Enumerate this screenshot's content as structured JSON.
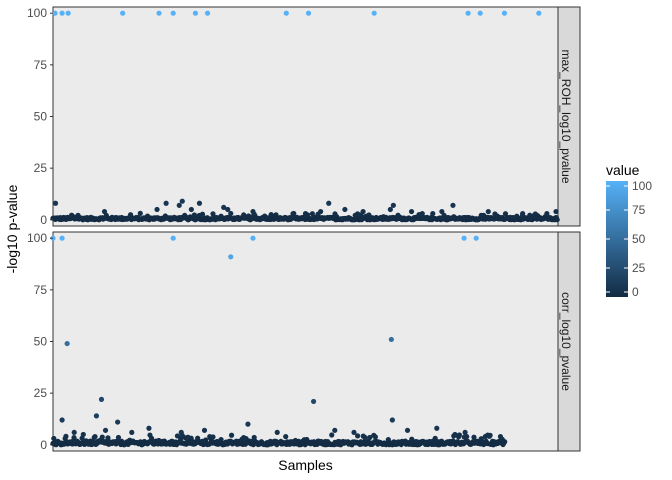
{
  "chart_data": {
    "type": "scatter",
    "xlabel": "Samples",
    "ylabel": "-log10 p-value",
    "ylim": [
      -3,
      103
    ],
    "y_ticks": [
      0,
      25,
      50,
      75,
      100
    ],
    "x_range": [
      0,
      1000
    ],
    "legend": {
      "title": "value",
      "type": "colorbar",
      "position": "right",
      "ticks": [
        0,
        25,
        50,
        75,
        100
      ],
      "low_color": "#132b43",
      "high_color": "#56b1f7"
    },
    "panels": [
      {
        "strip": "max_ROH_log10_pvalue",
        "high_points": [
          {
            "x": 4,
            "y": 100
          },
          {
            "x": 18,
            "y": 100
          },
          {
            "x": 30,
            "y": 100
          },
          {
            "x": 138,
            "y": 100
          },
          {
            "x": 210,
            "y": 100
          },
          {
            "x": 238,
            "y": 100
          },
          {
            "x": 282,
            "y": 100
          },
          {
            "x": 306,
            "y": 100
          },
          {
            "x": 462,
            "y": 100
          },
          {
            "x": 506,
            "y": 100
          },
          {
            "x": 636,
            "y": 100
          },
          {
            "x": 822,
            "y": 100
          },
          {
            "x": 846,
            "y": 100
          },
          {
            "x": 894,
            "y": 100
          },
          {
            "x": 962,
            "y": 100
          }
        ],
        "elevated_points": [
          {
            "x": 5,
            "y": 8
          },
          {
            "x": 102,
            "y": 4
          },
          {
            "x": 206,
            "y": 5
          },
          {
            "x": 224,
            "y": 8
          },
          {
            "x": 250,
            "y": 7
          },
          {
            "x": 256,
            "y": 9
          },
          {
            "x": 274,
            "y": 5
          },
          {
            "x": 290,
            "y": 8
          },
          {
            "x": 338,
            "y": 6
          },
          {
            "x": 346,
            "y": 5
          },
          {
            "x": 396,
            "y": 4
          },
          {
            "x": 500,
            "y": 3
          },
          {
            "x": 530,
            "y": 4
          },
          {
            "x": 546,
            "y": 8
          },
          {
            "x": 578,
            "y": 5
          },
          {
            "x": 614,
            "y": 4
          },
          {
            "x": 668,
            "y": 5
          },
          {
            "x": 674,
            "y": 7
          },
          {
            "x": 710,
            "y": 4
          },
          {
            "x": 770,
            "y": 4
          },
          {
            "x": 792,
            "y": 7
          },
          {
            "x": 862,
            "y": 4
          },
          {
            "x": 930,
            "y": 3
          },
          {
            "x": 978,
            "y": 3
          },
          {
            "x": 996,
            "y": 4
          }
        ],
        "baseline_max": 2,
        "x_end": 1000
      },
      {
        "strip": "corr_log10_pvalue",
        "high_points": [
          {
            "x": 0,
            "y": 100
          },
          {
            "x": 18,
            "y": 100
          },
          {
            "x": 238,
            "y": 100
          },
          {
            "x": 352,
            "y": 91
          },
          {
            "x": 396,
            "y": 100
          },
          {
            "x": 814,
            "y": 100
          },
          {
            "x": 838,
            "y": 100
          }
        ],
        "elevated_points": [
          {
            "x": 28,
            "y": 49
          },
          {
            "x": 670,
            "y": 51
          },
          {
            "x": 96,
            "y": 22
          },
          {
            "x": 516,
            "y": 21
          },
          {
            "x": 18,
            "y": 12
          },
          {
            "x": 86,
            "y": 14
          },
          {
            "x": 128,
            "y": 11
          },
          {
            "x": 386,
            "y": 10
          },
          {
            "x": 672,
            "y": 12
          },
          {
            "x": 42,
            "y": 6
          },
          {
            "x": 60,
            "y": 5
          },
          {
            "x": 104,
            "y": 7
          },
          {
            "x": 156,
            "y": 6
          },
          {
            "x": 190,
            "y": 8
          },
          {
            "x": 254,
            "y": 6
          },
          {
            "x": 300,
            "y": 7
          },
          {
            "x": 444,
            "y": 6
          },
          {
            "x": 558,
            "y": 7
          },
          {
            "x": 596,
            "y": 6
          },
          {
            "x": 702,
            "y": 7
          },
          {
            "x": 760,
            "y": 8
          },
          {
            "x": 796,
            "y": 5
          },
          {
            "x": 816,
            "y": 6
          },
          {
            "x": 856,
            "y": 4
          },
          {
            "x": 886,
            "y": 4
          }
        ],
        "baseline_max": 3,
        "x_end": 896
      }
    ]
  }
}
